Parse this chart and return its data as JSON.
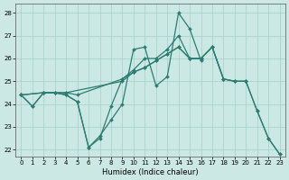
{
  "xlabel": "Humidex (Indice chaleur)",
  "bg_color": "#cce8e4",
  "grid_color": "#aad4ce",
  "line_color": "#2d7d72",
  "xlim": [
    -0.5,
    23.5
  ],
  "ylim": [
    21.7,
    28.4
  ],
  "yticks": [
    22,
    23,
    24,
    25,
    26,
    27,
    28
  ],
  "xticks": [
    0,
    1,
    2,
    3,
    4,
    5,
    6,
    7,
    8,
    9,
    10,
    11,
    12,
    13,
    14,
    15,
    16,
    17,
    18,
    19,
    20,
    21,
    22,
    23
  ],
  "series": [
    {
      "x": [
        0,
        1,
        2,
        3,
        4,
        5,
        6,
        7,
        8,
        9,
        10,
        11,
        12,
        13,
        14,
        15,
        16
      ],
      "y": [
        24.4,
        23.9,
        24.5,
        24.5,
        24.4,
        24.1,
        22.1,
        22.6,
        23.3,
        24.0,
        26.4,
        26.5,
        24.8,
        25.2,
        28.0,
        27.3,
        25.9
      ]
    },
    {
      "x": [
        0,
        2,
        3,
        4,
        9,
        10,
        11,
        12,
        13,
        14,
        15,
        16,
        17,
        18,
        19,
        20
      ],
      "y": [
        24.4,
        24.5,
        24.5,
        24.5,
        25.0,
        25.4,
        25.6,
        25.9,
        26.2,
        26.5,
        26.0,
        26.0,
        26.5,
        25.1,
        25.0,
        25.0
      ]
    },
    {
      "x": [
        0,
        2,
        3,
        4,
        5,
        9,
        10,
        11,
        12,
        13,
        14,
        15,
        16,
        17,
        18,
        19,
        20,
        21,
        22,
        23
      ],
      "y": [
        24.4,
        24.5,
        24.5,
        24.5,
        24.4,
        25.1,
        25.4,
        25.6,
        25.9,
        26.2,
        26.5,
        26.0,
        26.0,
        26.5,
        25.1,
        25.0,
        25.0,
        23.7,
        22.5,
        21.8
      ]
    },
    {
      "x": [
        0,
        1,
        2,
        3,
        4,
        5,
        6,
        7,
        8,
        9,
        10,
        11,
        12,
        13,
        14,
        15,
        16,
        17,
        18,
        19,
        20,
        21,
        22,
        23
      ],
      "y": [
        24.4,
        23.9,
        24.5,
        24.5,
        24.4,
        24.1,
        22.1,
        22.5,
        23.9,
        25.1,
        25.5,
        26.0,
        26.0,
        26.4,
        27.0,
        26.0,
        26.0,
        26.5,
        25.1,
        25.0,
        25.0,
        23.7,
        22.5,
        21.8
      ]
    }
  ]
}
